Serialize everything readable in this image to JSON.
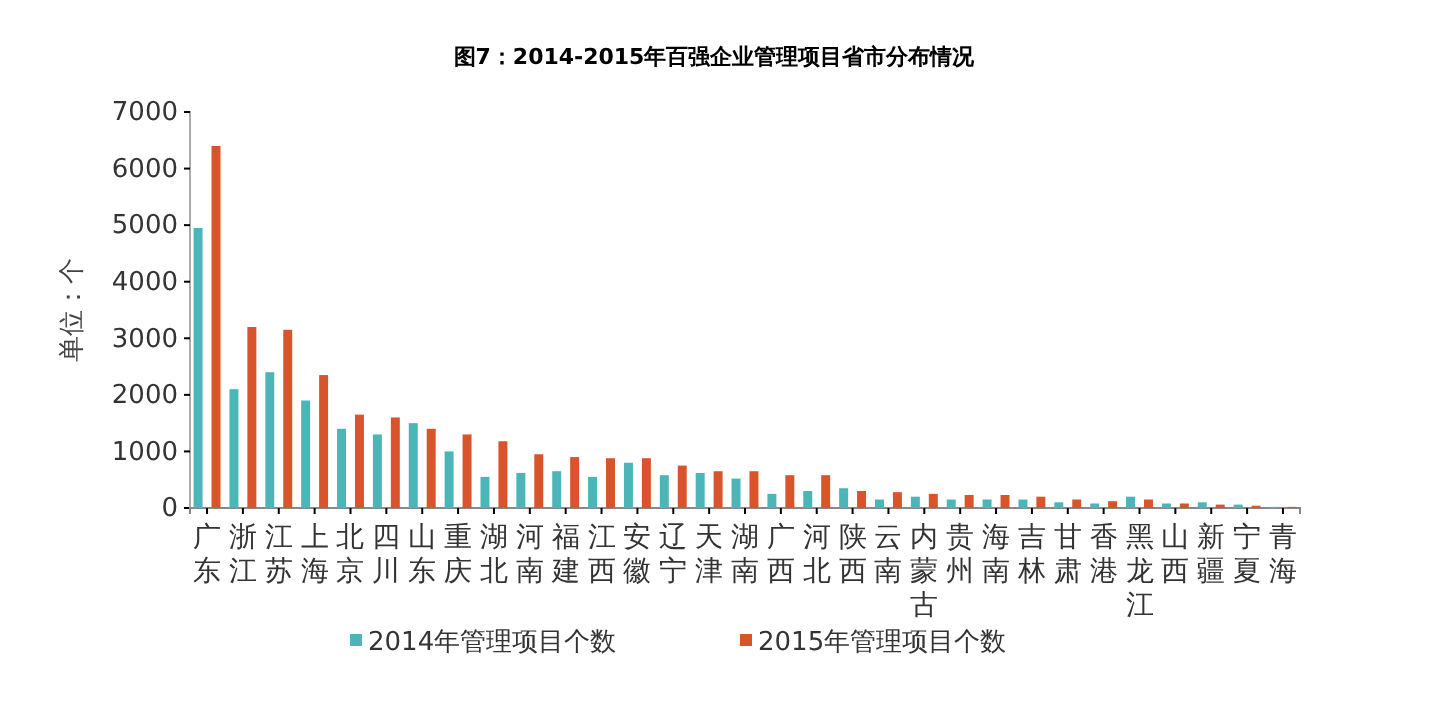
{
  "chart_data": {
    "type": "bar",
    "title": "图7：2014-2015年百强企业管理项目省市分布情况",
    "ylabel": "单位：个",
    "categories": [
      "广东",
      "浙江",
      "江苏",
      "上海",
      "北京",
      "四川",
      "山东",
      "重庆",
      "湖北",
      "河南",
      "福建",
      "江西",
      "安徽",
      "辽宁",
      "天津",
      "湖南",
      "广西",
      "河北",
      "陕西",
      "云南",
      "内蒙古",
      "贵州",
      "海南",
      "吉林",
      "甘肃",
      "香港",
      "黑龙江",
      "山西",
      "新疆",
      "宁夏",
      "青海"
    ],
    "series": [
      {
        "name": "2014年管理项目个数",
        "color": "#4bb5b8",
        "values": [
          4950,
          2100,
          2400,
          1900,
          1400,
          1300,
          1500,
          1000,
          550,
          620,
          650,
          550,
          800,
          580,
          620,
          520,
          250,
          300,
          350,
          150,
          200,
          150,
          150,
          150,
          100,
          80,
          200,
          80,
          100,
          60,
          20
        ]
      },
      {
        "name": "2015年管理项目个数",
        "color": "#d9532b",
        "values": [
          6400,
          3200,
          3150,
          2350,
          1650,
          1600,
          1400,
          1300,
          1180,
          950,
          900,
          880,
          880,
          750,
          650,
          650,
          580,
          580,
          300,
          280,
          250,
          230,
          230,
          200,
          150,
          120,
          150,
          80,
          60,
          40,
          20
        ]
      }
    ],
    "ylim": [
      0,
      7000
    ],
    "yticks": [
      0,
      1000,
      2000,
      3000,
      4000,
      5000,
      6000,
      7000
    ],
    "grid": false,
    "legend": "bottom"
  }
}
